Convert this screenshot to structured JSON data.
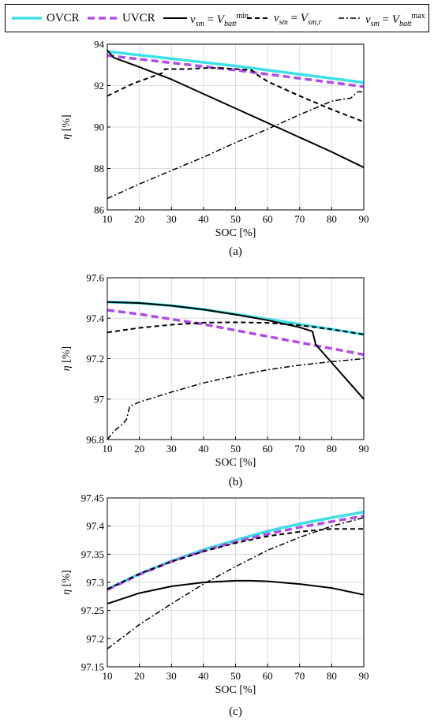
{
  "legend": {
    "entries": [
      {
        "key": "ovcr",
        "label": "OVCR",
        "color": "#3ee0e8",
        "dash": "",
        "width": 3.5
      },
      {
        "key": "uvcr",
        "label": "UVCR",
        "color": "#b34be6",
        "dash": "9,5",
        "width": 3.5
      },
      {
        "key": "vmin",
        "label_prefix": "v",
        "label_prefix_sub": "sm",
        "label_eq": " = ",
        "label_main": "V",
        "label_main_sub": "batt",
        "label_main_sup": "min",
        "color": "#000000",
        "dash": "",
        "width": 2
      },
      {
        "key": "vr",
        "label_prefix": "v",
        "label_prefix_sub": "sm",
        "label_eq": " = ",
        "label_main": "V",
        "label_main_sub": "sm,r",
        "label_main_sup": "",
        "color": "#000000",
        "dash": "6,4",
        "width": 2
      },
      {
        "key": "vmax",
        "label_prefix": "v",
        "label_prefix_sub": "sm",
        "label_eq": " = ",
        "label_main": "V",
        "label_main_sub": "batt",
        "label_main_sup": "max",
        "color": "#000000",
        "dash": "7,3,2,3",
        "width": 1.5
      }
    ]
  },
  "chart_data": [
    {
      "type": "line",
      "caption": "(a)",
      "xlabel": "SOC [%]",
      "ylabel": "η [%]",
      "xlim": [
        10,
        90
      ],
      "ylim": [
        86,
        94
      ],
      "xticks": [
        10,
        20,
        30,
        40,
        50,
        60,
        70,
        80,
        90
      ],
      "yticks": [
        86,
        88,
        90,
        92,
        94
      ],
      "ytick_labels": [
        "86",
        "88",
        "90",
        "92",
        "94"
      ],
      "grid": true,
      "series": [
        {
          "name": "OVCR",
          "x": [
            10,
            30,
            50,
            70,
            90
          ],
          "y": [
            93.65,
            93.3,
            92.95,
            92.55,
            92.15
          ]
        },
        {
          "name": "UVCR",
          "x": [
            10,
            30,
            50,
            70,
            90
          ],
          "y": [
            93.45,
            93.1,
            92.75,
            92.35,
            91.95
          ]
        },
        {
          "name": "v_sm = V_batt^min",
          "x": [
            10,
            12,
            20,
            30,
            40,
            50,
            60,
            70,
            80,
            90
          ],
          "y": [
            93.7,
            93.35,
            92.9,
            92.3,
            91.6,
            90.9,
            90.2,
            89.5,
            88.8,
            88.05
          ]
        },
        {
          "name": "v_sm = V_sm,r",
          "x": [
            10,
            18,
            27,
            28,
            35,
            40,
            45,
            50,
            55,
            57,
            60,
            70,
            80,
            90
          ],
          "y": [
            91.5,
            92.1,
            92.6,
            92.8,
            92.8,
            92.85,
            92.85,
            92.8,
            92.75,
            92.5,
            92.2,
            91.5,
            90.85,
            90.25
          ]
        },
        {
          "name": "v_sm = V_batt^max",
          "x": [
            10,
            20,
            30,
            40,
            50,
            60,
            70,
            80,
            86,
            88,
            90
          ],
          "y": [
            86.55,
            87.25,
            87.9,
            88.55,
            89.25,
            89.9,
            90.6,
            91.25,
            91.4,
            91.7,
            91.7
          ]
        }
      ]
    },
    {
      "type": "line",
      "caption": "(b)",
      "xlabel": "SOC [%]",
      "ylabel": "η [%]",
      "xlim": [
        10,
        90
      ],
      "ylim": [
        96.8,
        97.6
      ],
      "xticks": [
        10,
        20,
        30,
        40,
        50,
        60,
        70,
        80,
        90
      ],
      "yticks": [
        96.8,
        97,
        97.2,
        97.4,
        97.6
      ],
      "ytick_labels": [
        "96.8",
        "97",
        "97.2",
        "97.4",
        "97.6"
      ],
      "grid": true,
      "series": [
        {
          "name": "OVCR",
          "x": [
            10,
            20,
            30,
            40,
            50,
            60,
            70,
            80,
            90
          ],
          "y": [
            97.48,
            97.475,
            97.462,
            97.443,
            97.42,
            97.395,
            97.37,
            97.345,
            97.32
          ]
        },
        {
          "name": "UVCR",
          "x": [
            10,
            20,
            30,
            40,
            50,
            60,
            70,
            80,
            90
          ],
          "y": [
            97.44,
            97.42,
            97.395,
            97.37,
            97.34,
            97.31,
            97.28,
            97.25,
            97.22
          ]
        },
        {
          "name": "v_sm = V_batt^min",
          "x": [
            10,
            20,
            30,
            40,
            50,
            60,
            70,
            74,
            75,
            80,
            85,
            90
          ],
          "y": [
            97.48,
            97.475,
            97.462,
            97.443,
            97.418,
            97.39,
            97.355,
            97.335,
            97.27,
            97.18,
            97.09,
            97.0
          ]
        },
        {
          "name": "v_sm = V_sm,r",
          "x": [
            10,
            20,
            30,
            40,
            50,
            60,
            70,
            80,
            90
          ],
          "y": [
            97.33,
            97.352,
            97.368,
            97.378,
            97.38,
            97.377,
            97.365,
            97.345,
            97.32
          ]
        },
        {
          "name": "v_sm = V_batt^max",
          "x": [
            10,
            12,
            15,
            16,
            17,
            20,
            30,
            40,
            50,
            60,
            70,
            80,
            90
          ],
          "y": [
            96.8,
            96.84,
            96.88,
            96.9,
            96.965,
            96.985,
            97.035,
            97.08,
            97.115,
            97.145,
            97.168,
            97.185,
            97.2
          ]
        }
      ]
    },
    {
      "type": "line",
      "caption": "(c)",
      "xlabel": "SOC [%]",
      "ylabel": "η [%]",
      "xlim": [
        10,
        90
      ],
      "ylim": [
        97.15,
        97.45
      ],
      "xticks": [
        10,
        20,
        30,
        40,
        50,
        60,
        70,
        80,
        90
      ],
      "yticks": [
        97.15,
        97.2,
        97.25,
        97.3,
        97.35,
        97.4,
        97.45
      ],
      "ytick_labels": [
        "97.15",
        "97.2",
        "97.25",
        "97.3",
        "97.35",
        "97.4",
        "97.45"
      ],
      "grid": true,
      "series": [
        {
          "name": "OVCR",
          "x": [
            10,
            20,
            30,
            40,
            50,
            60,
            70,
            80,
            90
          ],
          "y": [
            97.288,
            97.315,
            97.338,
            97.358,
            97.375,
            97.391,
            97.404,
            97.415,
            97.425
          ]
        },
        {
          "name": "UVCR",
          "x": [
            10,
            20,
            30,
            40,
            50,
            60,
            70,
            80,
            90
          ],
          "y": [
            97.287,
            97.314,
            97.337,
            97.356,
            97.372,
            97.386,
            97.398,
            97.408,
            97.418
          ]
        },
        {
          "name": "v_sm = V_batt^min",
          "x": [
            10,
            20,
            30,
            40,
            50,
            55,
            60,
            70,
            80,
            90
          ],
          "y": [
            97.262,
            97.281,
            97.293,
            97.3,
            97.303,
            97.303,
            97.302,
            97.297,
            97.29,
            97.278
          ]
        },
        {
          "name": "v_sm = V_sm,r",
          "x": [
            10,
            20,
            30,
            40,
            50,
            60,
            70,
            80,
            90
          ],
          "y": [
            97.288,
            97.315,
            97.337,
            97.355,
            97.37,
            97.382,
            97.39,
            97.395,
            97.395
          ]
        },
        {
          "name": "v_sm = V_batt^max",
          "x": [
            10,
            20,
            30,
            40,
            50,
            60,
            70,
            80,
            90
          ],
          "y": [
            97.182,
            97.225,
            97.262,
            97.297,
            97.328,
            97.357,
            97.38,
            97.4,
            97.415
          ]
        }
      ]
    }
  ]
}
